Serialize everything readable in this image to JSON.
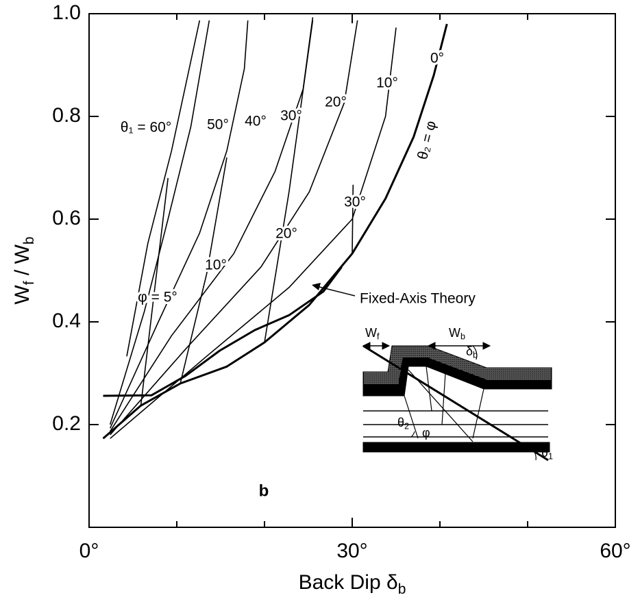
{
  "chart_data": {
    "type": "line",
    "xlabel": [
      "Back Dip δ",
      "b"
    ],
    "ylabel": [
      "W",
      "f",
      " / W",
      "b"
    ],
    "panel_label": "b",
    "xlim": [
      0,
      60
    ],
    "ylim": [
      0,
      1
    ],
    "xticks": [
      {
        "value": 0,
        "label": "0°"
      },
      {
        "value": 30,
        "label": "30°"
      },
      {
        "value": 60,
        "label": "60°"
      }
    ],
    "xminorticks": [
      10,
      20,
      40,
      50
    ],
    "yticks": [
      0.2,
      0.4,
      0.6,
      0.8,
      {
        "value": 1,
        "label": "1.0"
      }
    ],
    "series": [
      {
        "name": "θ₁ = 60°",
        "color": "#000",
        "width": 1.6,
        "x": [
          4.3,
          6.7,
          9.4,
          12.6
        ],
        "values": [
          0.333,
          0.553,
          0.733,
          0.987
        ]
      },
      {
        "name": "50°",
        "color": "#000",
        "width": 1.6,
        "x": [
          2.4,
          6.3,
          9.0,
          11.6,
          13.7
        ],
        "values": [
          0.2,
          0.42,
          0.6,
          0.78,
          0.987
        ]
      },
      {
        "name": "40°",
        "color": "#000",
        "width": 1.6,
        "x": [
          2.4,
          7.9,
          12.6,
          15.7,
          17.7,
          18.1
        ],
        "values": [
          0.193,
          0.4,
          0.573,
          0.733,
          0.893,
          0.987
        ]
      },
      {
        "name": "30°",
        "color": "#000",
        "width": 1.6,
        "x": [
          2.4,
          9.4,
          16.5,
          21.2,
          24.4,
          25.5
        ],
        "values": [
          0.187,
          0.373,
          0.533,
          0.693,
          0.853,
          0.993
        ]
      },
      {
        "name": "20°",
        "color": "#000",
        "width": 1.6,
        "x": [
          2.4,
          11.0,
          19.6,
          25.1,
          29.1,
          30.6
        ],
        "values": [
          0.18,
          0.347,
          0.507,
          0.653,
          0.827,
          0.987
        ]
      },
      {
        "name": "10°",
        "color": "#000",
        "width": 1.6,
        "x": [
          2.4,
          13.4,
          22.8,
          30.0,
          33.8,
          35.0
        ],
        "values": [
          0.173,
          0.333,
          0.467,
          0.6,
          0.8,
          0.973
        ]
      },
      {
        "name": "φ = 5°",
        "color": "#000",
        "width": 1.6,
        "x": [
          9.0,
          7.5,
          5.9
        ],
        "values": [
          0.68,
          0.467,
          0.237
        ]
      },
      {
        "name": "10°",
        "color": "#000",
        "width": 1.6,
        "x": [
          15.7,
          13.4,
          10.4
        ],
        "values": [
          0.72,
          0.493,
          0.28
        ]
      },
      {
        "name": "20°",
        "color": "#000",
        "width": 1.6,
        "x": [
          25.5,
          22.8,
          20.0
        ],
        "values": [
          0.987,
          0.653,
          0.36
        ]
      },
      {
        "name": "30°",
        "color": "#000",
        "width": 1.6,
        "x": [
          30.1,
          30.0
        ],
        "values": [
          0.667,
          0.533
        ]
      },
      {
        "name": "θ₂ = φ",
        "label": "0°",
        "color": "#000",
        "width": 3,
        "x": [
          1.6,
          5.9,
          10.4,
          15.7,
          20.0,
          25.1,
          30.0,
          33.8,
          37.0,
          39.3,
          40.8
        ],
        "values": [
          0.173,
          0.237,
          0.28,
          0.313,
          0.36,
          0.433,
          0.533,
          0.64,
          0.76,
          0.88,
          0.98
        ]
      },
      {
        "name": "Fixed-Axis Theory",
        "color": "#000",
        "width": 3,
        "x": [
          1.6,
          7.1,
          11.0,
          14.9,
          18.9,
          22.8,
          26.7,
          28.8
        ],
        "values": [
          0.256,
          0.257,
          0.295,
          0.344,
          0.384,
          0.413,
          0.459,
          0.507
        ]
      }
    ],
    "inset_labels": {
      "wf": [
        "W",
        "f"
      ],
      "wb": [
        "W",
        "b"
      ],
      "delta_b": [
        "δ",
        "b"
      ],
      "theta2": [
        "θ",
        "2"
      ],
      "phi": "φ",
      "theta1": [
        "θ",
        "1"
      ]
    }
  }
}
